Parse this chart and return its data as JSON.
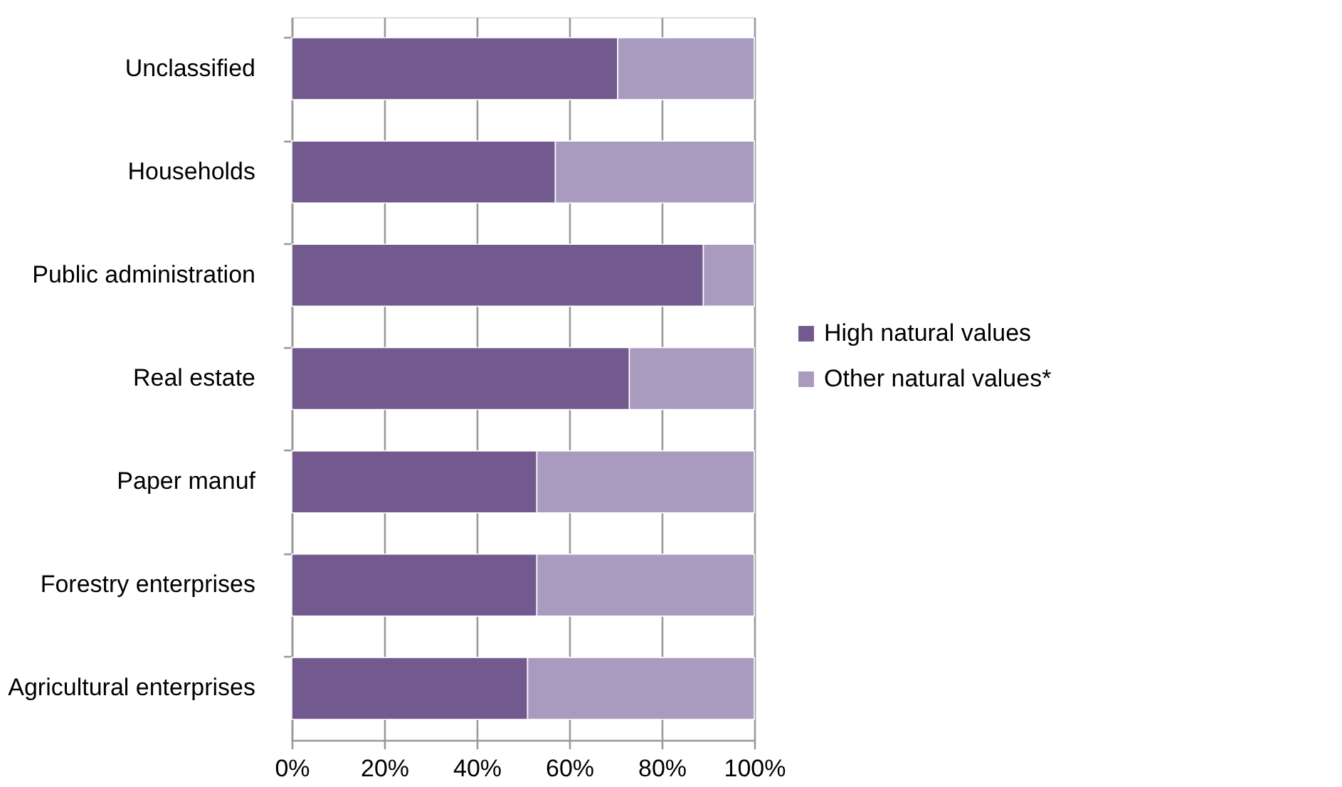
{
  "chart_data": {
    "type": "bar",
    "orientation": "horizontal",
    "stacked": true,
    "categories": [
      "Unclassified",
      "Households",
      "Public administration",
      "Real estate",
      "Paper manuf",
      "Forestry enterprises",
      "Agricultural enterprises"
    ],
    "series": [
      {
        "name": "High natural values",
        "color": "#725a8f",
        "values": [
          70.5,
          57,
          89,
          73,
          53,
          53,
          51
        ]
      },
      {
        "name": "Other natural values*",
        "color": "#a99bbf",
        "values": [
          29.5,
          43,
          11,
          27,
          47,
          47,
          49
        ]
      }
    ],
    "xlim": [
      0,
      100
    ],
    "xticks": [
      {
        "value": 0,
        "label": "0%"
      },
      {
        "value": 20,
        "label": "20%"
      },
      {
        "value": 40,
        "label": "40%"
      },
      {
        "value": 60,
        "label": "60%"
      },
      {
        "value": 80,
        "label": "80%"
      },
      {
        "value": 100,
        "label": "100%"
      }
    ],
    "grid": "x",
    "legend": "right"
  }
}
